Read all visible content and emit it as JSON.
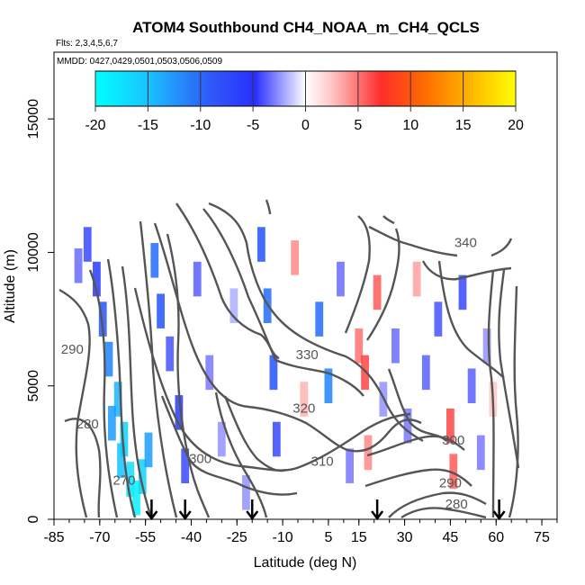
{
  "chart_data": {
    "type": "heatmap",
    "title": "ATOM4 Southbound CH4_NOAA_m_CH4_QCLS",
    "flights_text": "Flts: 2,3,4,5,6,7",
    "dates_text": "MMDD: 0427,0429,0501,0503,0506,0509",
    "xlabel": "Latitude (deg N)",
    "ylabel": "Altitude (m)",
    "xlim": [
      -85,
      80
    ],
    "ylim": [
      0,
      17500
    ],
    "x_ticks": [
      "-85",
      "-70",
      "-55",
      "-40",
      "-25",
      "-10",
      "5",
      "15",
      "30",
      "45",
      "60",
      "75"
    ],
    "x_tick_values": [
      -85,
      -70,
      -55,
      -40,
      -25,
      -10,
      5,
      15,
      30,
      45,
      60,
      75
    ],
    "y_ticks": [
      "0",
      "5000",
      "10000",
      "15000"
    ],
    "y_tick_values": [
      0,
      5000,
      10000,
      15000
    ],
    "colorbar": {
      "range": [
        -20,
        20
      ],
      "tick_labels": [
        "-20",
        "-15",
        "-10",
        "-5",
        "0",
        "5",
        "10",
        "15",
        "20"
      ],
      "tick_values": [
        -20,
        -15,
        -10,
        -5,
        0,
        5,
        10,
        15,
        20
      ]
    },
    "cells": [
      {
        "lat": -77,
        "alt": 9500,
        "v": -6
      },
      {
        "lat": -74,
        "alt": 10300,
        "v": -9
      },
      {
        "lat": -71,
        "alt": 9000,
        "v": -10
      },
      {
        "lat": -69,
        "alt": 7500,
        "v": -11
      },
      {
        "lat": -67,
        "alt": 6000,
        "v": -13
      },
      {
        "lat": -64,
        "alt": 4500,
        "v": -15
      },
      {
        "lat": -62,
        "alt": 3000,
        "v": -17
      },
      {
        "lat": -60,
        "alt": 1500,
        "v": -18
      },
      {
        "lat": -63,
        "alt": 2200,
        "v": -16
      },
      {
        "lat": -66,
        "alt": 3600,
        "v": -14
      },
      {
        "lat": -58,
        "alt": 800,
        "v": -19
      },
      {
        "lat": -56,
        "alt": 1600,
        "v": -17
      },
      {
        "lat": -54,
        "alt": 2600,
        "v": -14
      },
      {
        "lat": -52,
        "alt": 9700,
        "v": -12
      },
      {
        "lat": -50,
        "alt": 7800,
        "v": -11
      },
      {
        "lat": -47,
        "alt": 6200,
        "v": -8
      },
      {
        "lat": -44,
        "alt": 4000,
        "v": -10
      },
      {
        "lat": -42,
        "alt": 2000,
        "v": -9
      },
      {
        "lat": -38,
        "alt": 9000,
        "v": -7
      },
      {
        "lat": -34,
        "alt": 5500,
        "v": -5
      },
      {
        "lat": -30,
        "alt": 3000,
        "v": -4
      },
      {
        "lat": -26,
        "alt": 8000,
        "v": -3
      },
      {
        "lat": -22,
        "alt": 1000,
        "v": -4
      },
      {
        "lat": -17,
        "alt": 10300,
        "v": -11
      },
      {
        "lat": -15,
        "alt": 8000,
        "v": -12
      },
      {
        "lat": -13,
        "alt": 5500,
        "v": -11
      },
      {
        "lat": -12,
        "alt": 3000,
        "v": -9
      },
      {
        "lat": -6,
        "alt": 9800,
        "v": 6
      },
      {
        "lat": -3,
        "alt": 4500,
        "v": 4
      },
      {
        "lat": 2,
        "alt": 7500,
        "v": -12
      },
      {
        "lat": 5,
        "alt": 5000,
        "v": -13
      },
      {
        "lat": 9,
        "alt": 9000,
        "v": -6
      },
      {
        "lat": 12,
        "alt": 2000,
        "v": -5
      },
      {
        "lat": 15,
        "alt": 6500,
        "v": 7
      },
      {
        "lat": 17,
        "alt": 5500,
        "v": 9
      },
      {
        "lat": 18,
        "alt": 2500,
        "v": 6
      },
      {
        "lat": 21,
        "alt": 8500,
        "v": 8
      },
      {
        "lat": 23,
        "alt": 4500,
        "v": -4
      },
      {
        "lat": 27,
        "alt": 6500,
        "v": -6
      },
      {
        "lat": 31,
        "alt": 3500,
        "v": -5
      },
      {
        "lat": 34,
        "alt": 9000,
        "v": 5
      },
      {
        "lat": 37,
        "alt": 5500,
        "v": -7
      },
      {
        "lat": 41,
        "alt": 7500,
        "v": -8
      },
      {
        "lat": 45,
        "alt": 3500,
        "v": 9
      },
      {
        "lat": 46,
        "alt": 1800,
        "v": 8
      },
      {
        "lat": 49,
        "alt": 8500,
        "v": -9
      },
      {
        "lat": 52,
        "alt": 5000,
        "v": -7
      },
      {
        "lat": 55,
        "alt": 2500,
        "v": -5
      },
      {
        "lat": 57,
        "alt": 6500,
        "v": -4
      },
      {
        "lat": 59,
        "alt": 4500,
        "v": 3
      }
    ],
    "contour_labels": [
      {
        "text": "340",
        "lat": 50,
        "alt": 10200
      },
      {
        "text": "330",
        "lat": -2,
        "alt": 6000
      },
      {
        "text": "320",
        "lat": -3,
        "alt": 4000
      },
      {
        "text": "310",
        "lat": 3,
        "alt": 2000
      },
      {
        "text": "300",
        "lat": -37,
        "alt": 2100
      },
      {
        "text": "300",
        "lat": 46,
        "alt": 2800
      },
      {
        "text": "290",
        "lat": -79,
        "alt": 6200
      },
      {
        "text": "290",
        "lat": 45,
        "alt": 1200
      },
      {
        "text": "280",
        "lat": -74,
        "alt": 3400
      },
      {
        "text": "280",
        "lat": 47,
        "alt": 400
      },
      {
        "text": "270",
        "lat": -62,
        "alt": 1300
      }
    ],
    "arrow_latitudes": [
      -53,
      -42,
      -20,
      21,
      61
    ]
  }
}
